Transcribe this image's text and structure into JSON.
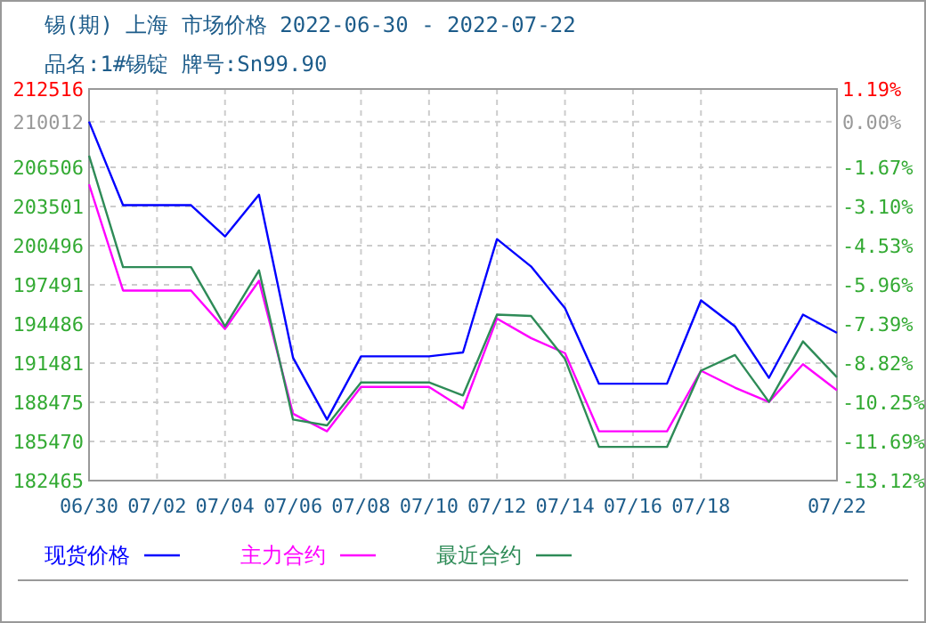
{
  "chart_data": {
    "type": "line",
    "title": "锡(期) 上海 市场价格 2022-06-30 - 2022-07-22",
    "subtitle": "品名:1#锡锭 牌号:Sn99.90",
    "x": [
      "2022-06-30",
      "2022-07-01",
      "2022-07-02",
      "2022-07-03",
      "2022-07-04",
      "2022-07-05",
      "2022-07-06",
      "2022-07-07",
      "2022-07-08",
      "2022-07-09",
      "2022-07-10",
      "2022-07-11",
      "2022-07-12",
      "2022-07-13",
      "2022-07-14",
      "2022-07-15",
      "2022-07-16",
      "2022-07-17",
      "2022-07-18",
      "2022-07-19",
      "2022-07-20",
      "2022-07-21",
      "2022-07-22"
    ],
    "series": [
      {
        "name": "现货价格",
        "color": "#0000ff",
        "values": [
          210012,
          203600,
          203600,
          203600,
          201200,
          204400,
          191900,
          187150,
          192000,
          192000,
          192000,
          192300,
          201000,
          198900,
          195700,
          189900,
          189900,
          189900,
          196300,
          194300,
          190350,
          195200,
          193800
        ]
      },
      {
        "name": "主力合约",
        "color": "#ff00ff",
        "values": [
          205200,
          197050,
          197050,
          197050,
          194100,
          197800,
          187600,
          186250,
          189650,
          189650,
          189650,
          188000,
          194900,
          193400,
          192250,
          186250,
          186250,
          186250,
          190900,
          189600,
          188500,
          191400,
          189400
        ]
      },
      {
        "name": "最近合约",
        "color": "#2e8b57",
        "values": [
          207400,
          198850,
          198850,
          198850,
          194300,
          198600,
          187150,
          186700,
          190000,
          190000,
          190000,
          189000,
          195200,
          195100,
          191800,
          185050,
          185050,
          185050,
          190900,
          192100,
          188500,
          193150,
          190400
        ]
      }
    ],
    "xlim": [
      "2022-06-30",
      "2022-07-22"
    ],
    "xticks": [
      {
        "value": "2022-06-30",
        "label": "06/30"
      },
      {
        "value": "2022-07-02",
        "label": "07/02"
      },
      {
        "value": "2022-07-04",
        "label": "07/04"
      },
      {
        "value": "2022-07-06",
        "label": "07/06"
      },
      {
        "value": "2022-07-08",
        "label": "07/08"
      },
      {
        "value": "2022-07-10",
        "label": "07/10"
      },
      {
        "value": "2022-07-12",
        "label": "07/12"
      },
      {
        "value": "2022-07-14",
        "label": "07/14"
      },
      {
        "value": "2022-07-16",
        "label": "07/16"
      },
      {
        "value": "2022-07-18",
        "label": "07/18"
      },
      {
        "value": "2022-07-22",
        "label": "07/22"
      }
    ],
    "ylim": [
      182465,
      212516
    ],
    "yticks": [
      182465,
      185470,
      188475,
      191481,
      194486,
      197491,
      200496,
      203501,
      206506,
      210012,
      212516
    ],
    "y2lim": [
      -13.12,
      1.19
    ],
    "y2ticks": [
      {
        "value": -13.12,
        "label": "-13.12%"
      },
      {
        "value": -11.69,
        "label": "-11.69%"
      },
      {
        "value": -10.25,
        "label": "-10.25%"
      },
      {
        "value": -8.82,
        "label": "-8.82%"
      },
      {
        "value": -7.39,
        "label": "-7.39%"
      },
      {
        "value": -5.96,
        "label": "-5.96%"
      },
      {
        "value": -4.53,
        "label": "-4.53%"
      },
      {
        "value": -3.1,
        "label": "-3.10%"
      },
      {
        "value": -1.67,
        "label": "-1.67%"
      },
      {
        "value": 0,
        "label": "0.00%"
      },
      {
        "value": 1.19,
        "label": "1.19%"
      }
    ],
    "grid": true,
    "legend": "bottom",
    "marker": "none",
    "line_style": "solid"
  }
}
